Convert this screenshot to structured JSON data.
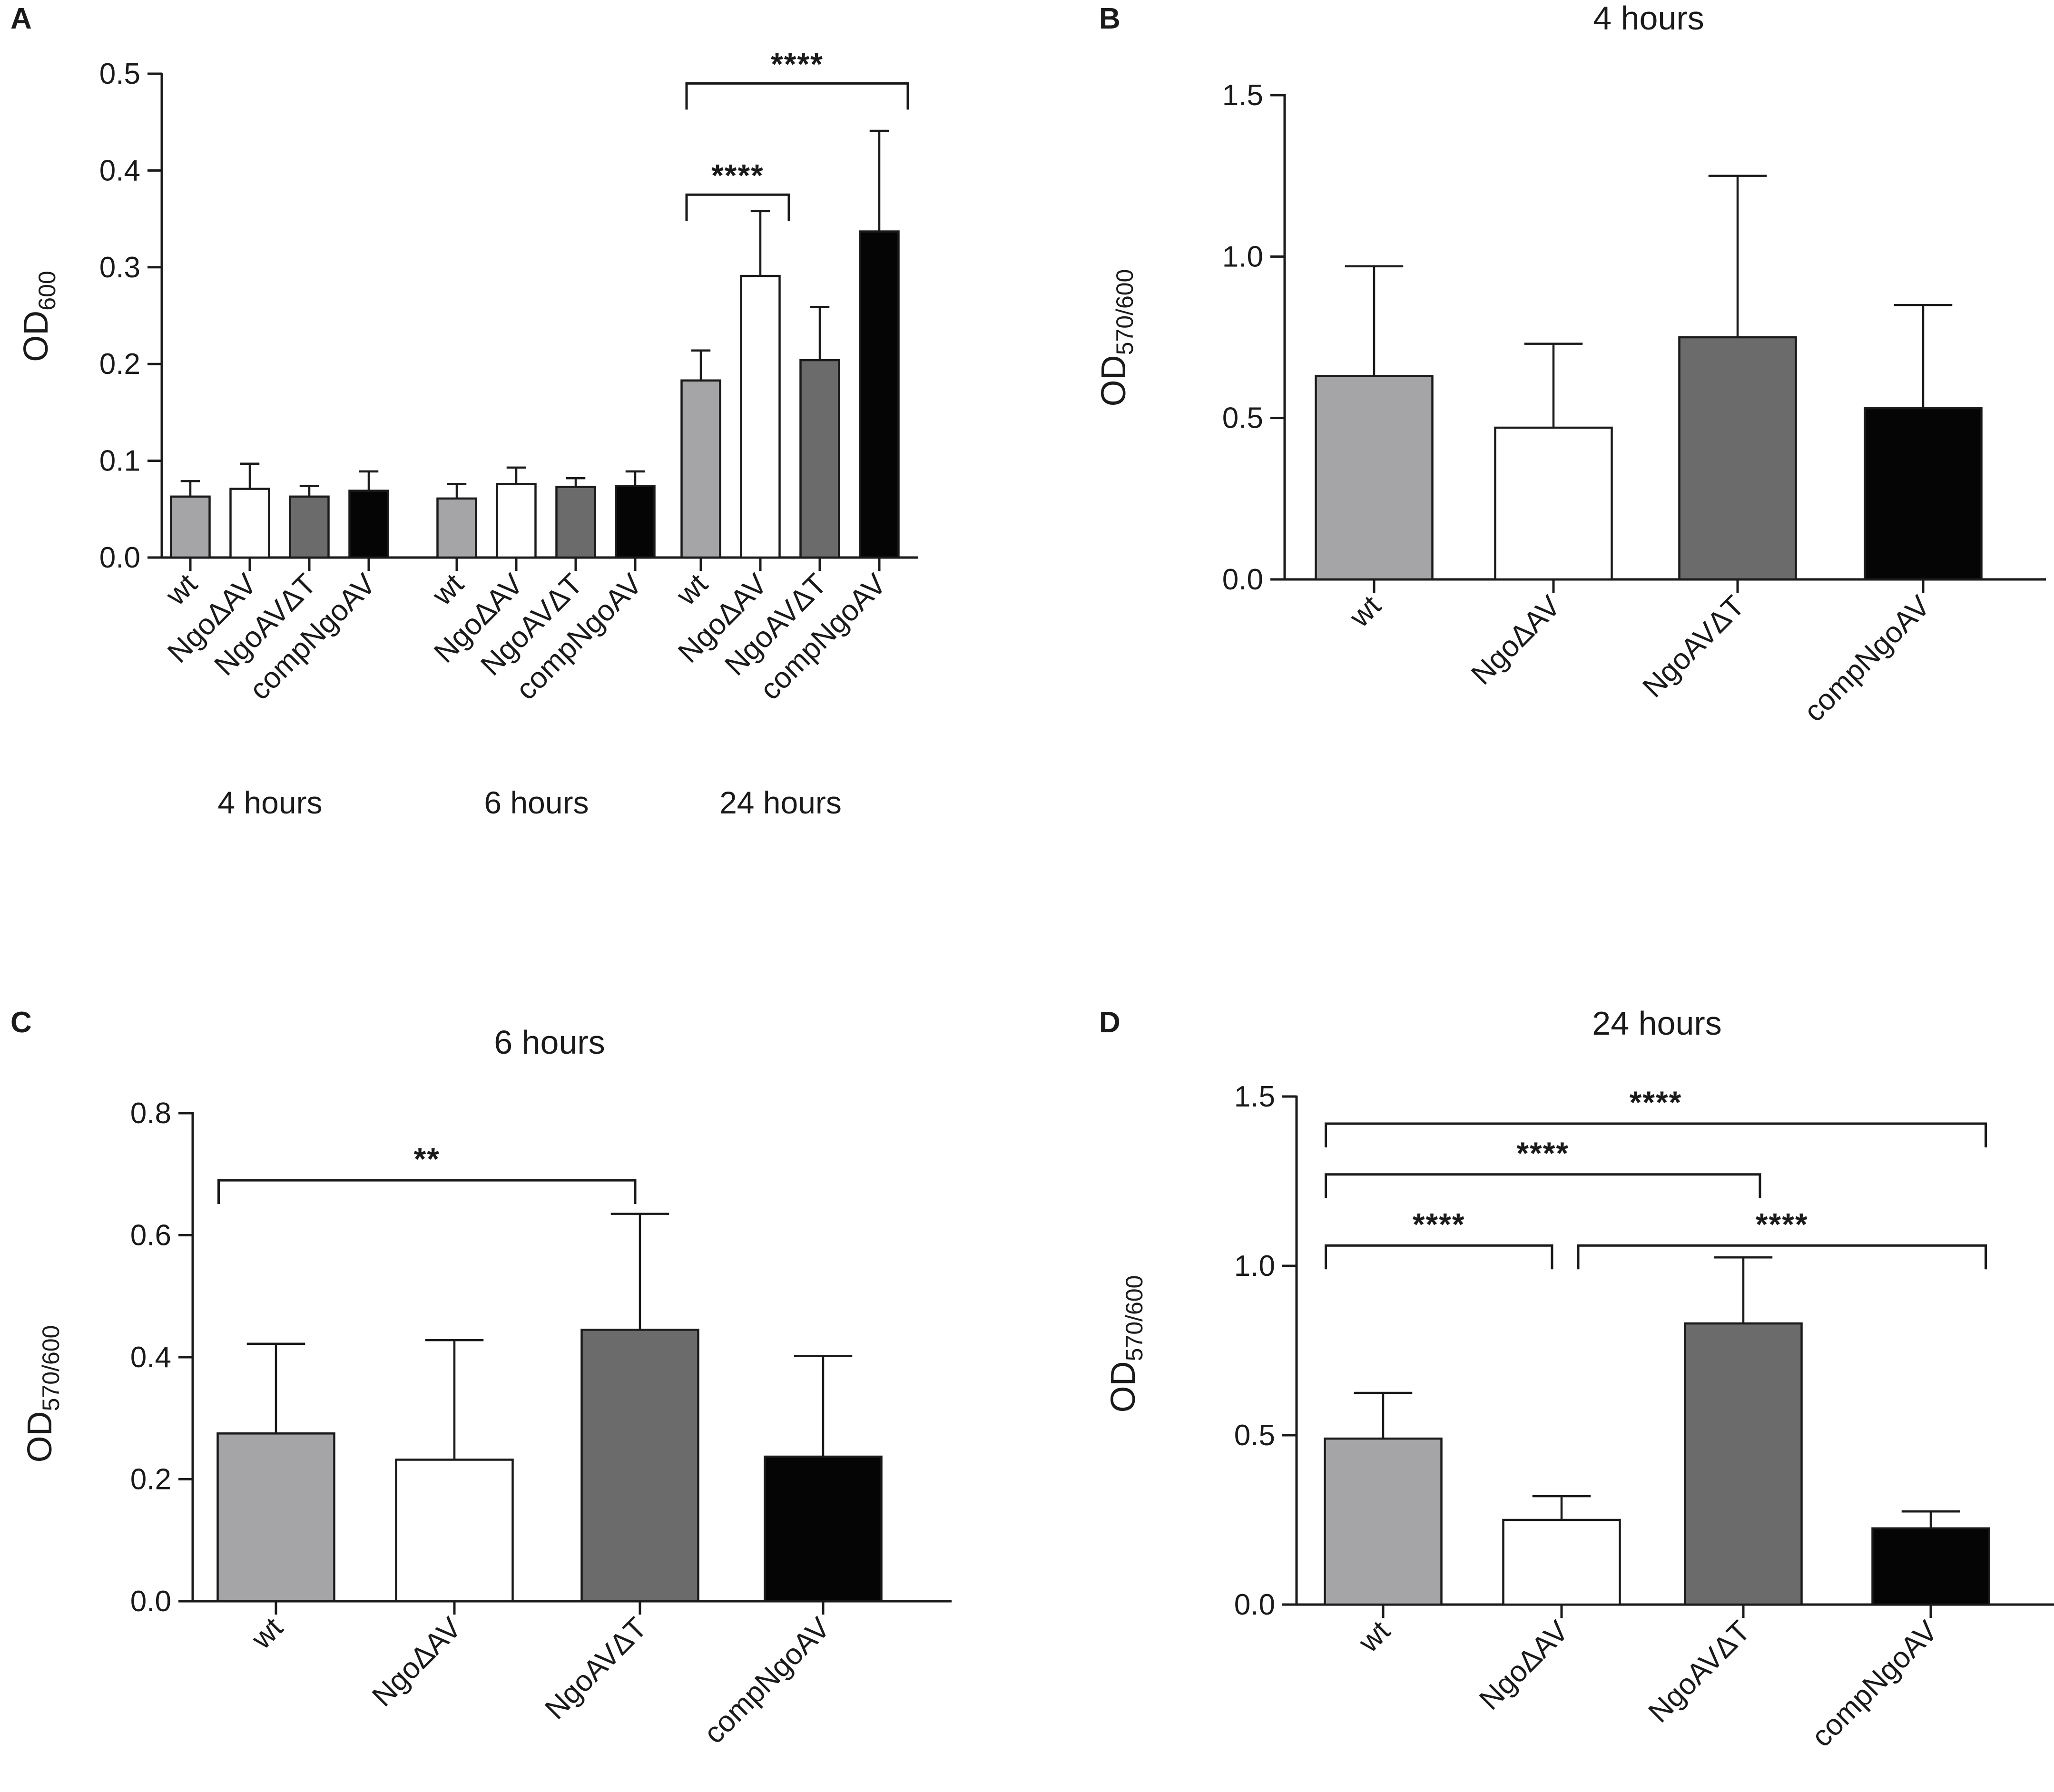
{
  "colors": {
    "wt": "#a5a5a7",
    "ngo_dav": "#ffffff",
    "ngoav_dt": "#6b6b6b",
    "compngoav": "#050505",
    "axis": "#1a1a1a"
  },
  "chart_data": [
    {
      "id": "A",
      "panel_label": "A",
      "type": "bar",
      "title": "",
      "ylabel_main": "OD",
      "ylabel_sub": "600",
      "ylim": [
        0,
        0.5
      ],
      "yticks": [
        "0.0",
        "0.1",
        "0.2",
        "0.3",
        "0.4",
        "0.5"
      ],
      "groups": [
        "4 hours",
        "6 hours",
        "24 hours"
      ],
      "categories": [
        "wt",
        "NgoΔAV",
        "NgoAVΔT",
        "compNgoAV"
      ],
      "series": [
        {
          "group": "4 hours",
          "values": [
            0.063,
            0.071,
            0.063,
            0.069
          ],
          "errors": [
            0.016,
            0.026,
            0.011,
            0.02
          ]
        },
        {
          "group": "6 hours",
          "values": [
            0.061,
            0.076,
            0.073,
            0.074
          ],
          "errors": [
            0.015,
            0.017,
            0.009,
            0.015
          ]
        },
        {
          "group": "24 hours",
          "values": [
            0.183,
            0.291,
            0.204,
            0.337
          ],
          "errors": [
            0.031,
            0.067,
            0.055,
            0.104
          ]
        }
      ],
      "significance": [
        {
          "group": "24 hours",
          "from": 0,
          "to": 1,
          "label": "****",
          "y": 0.375
        },
        {
          "group": "24 hours",
          "from": 0,
          "to": 3,
          "label": "****",
          "y": 0.49
        }
      ]
    },
    {
      "id": "B",
      "panel_label": "B",
      "type": "bar",
      "title": "4 hours",
      "ylabel_main": "OD",
      "ylabel_sub": "570/600",
      "ylim": [
        0,
        1.5
      ],
      "yticks": [
        "0.0",
        "0.5",
        "1.0",
        "1.5"
      ],
      "categories": [
        "wt",
        "NgoΔAV",
        "NgoAVΔT",
        "compNgoAV"
      ],
      "values": [
        0.63,
        0.47,
        0.75,
        0.53
      ],
      "errors": [
        0.34,
        0.26,
        0.5,
        0.32
      ],
      "significance": []
    },
    {
      "id": "C",
      "panel_label": "C",
      "type": "bar",
      "title": "6 hours",
      "ylabel_main": "OD",
      "ylabel_sub": "570/600",
      "ylim": [
        0,
        0.8
      ],
      "yticks": [
        "0.0",
        "0.2",
        "0.4",
        "0.6",
        "0.8"
      ],
      "categories": [
        "wt",
        "NgoΔAV",
        "NgoAVΔT",
        "compNgoAV"
      ],
      "values": [
        0.275,
        0.232,
        0.445,
        0.237
      ],
      "errors": [
        0.147,
        0.196,
        0.19,
        0.165
      ],
      "significance": [
        {
          "from": 0,
          "to": 2,
          "label": "**",
          "y": 0.69
        }
      ]
    },
    {
      "id": "D",
      "panel_label": "D",
      "type": "bar",
      "title": "24 hours",
      "ylabel_main": "OD",
      "ylabel_sub": "570/600",
      "ylim": [
        0,
        1.5
      ],
      "yticks": [
        "0.0",
        "0.5",
        "1.0",
        "1.5"
      ],
      "categories": [
        "wt",
        "NgoΔAV",
        "NgoAVΔT",
        "compNgoAV"
      ],
      "values": [
        0.49,
        0.25,
        0.83,
        0.225
      ],
      "errors": [
        0.135,
        0.07,
        0.195,
        0.05
      ],
      "significance": [
        {
          "from": 0,
          "to": 3,
          "label": "****",
          "y": 1.42
        },
        {
          "from": 0,
          "to": 2,
          "label": "****",
          "y": 1.27
        },
        {
          "from": 0,
          "to": 1,
          "label": "****",
          "y": 1.06
        },
        {
          "from": 1,
          "to": 3,
          "label": "****",
          "y": 1.06
        }
      ]
    }
  ]
}
